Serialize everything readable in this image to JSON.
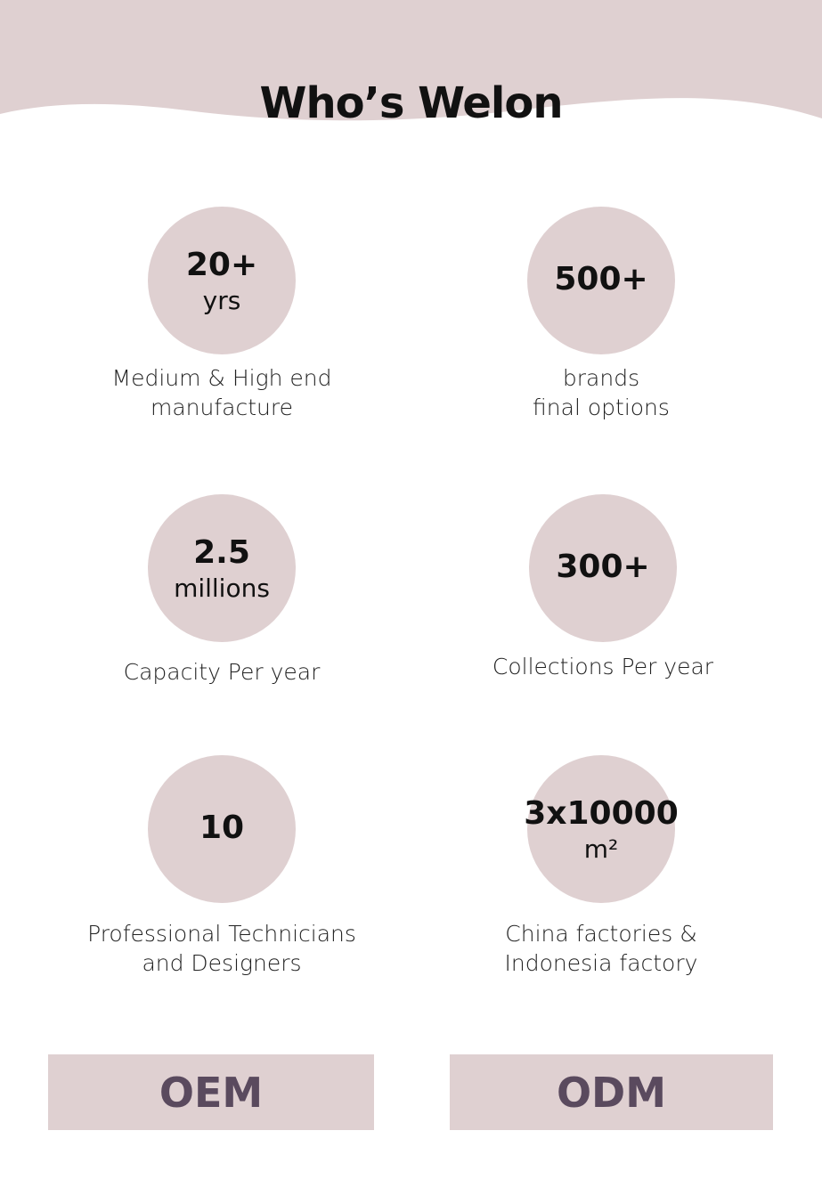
{
  "header": {
    "title": "Who’s Welon"
  },
  "stats": [
    {
      "number": "20+",
      "unit": "yrs",
      "caption": [
        "Medium & High end",
        "manufacture"
      ]
    },
    {
      "number": "500+",
      "caption": [
        "brands",
        "final options"
      ]
    },
    {
      "number": "2.5",
      "unit": "millions",
      "caption": [
        "Capacity Per year"
      ]
    },
    {
      "number": "300+",
      "caption": [
        "Collections Per year"
      ]
    },
    {
      "number": "10",
      "caption": [
        "Professional Technicians",
        "and Designers"
      ]
    },
    {
      "number": "3x10000",
      "unit": "m²",
      "caption": [
        "China factories &",
        "Indonesia factory"
      ]
    }
  ],
  "buttons": [
    "OEM",
    "ODM"
  ]
}
